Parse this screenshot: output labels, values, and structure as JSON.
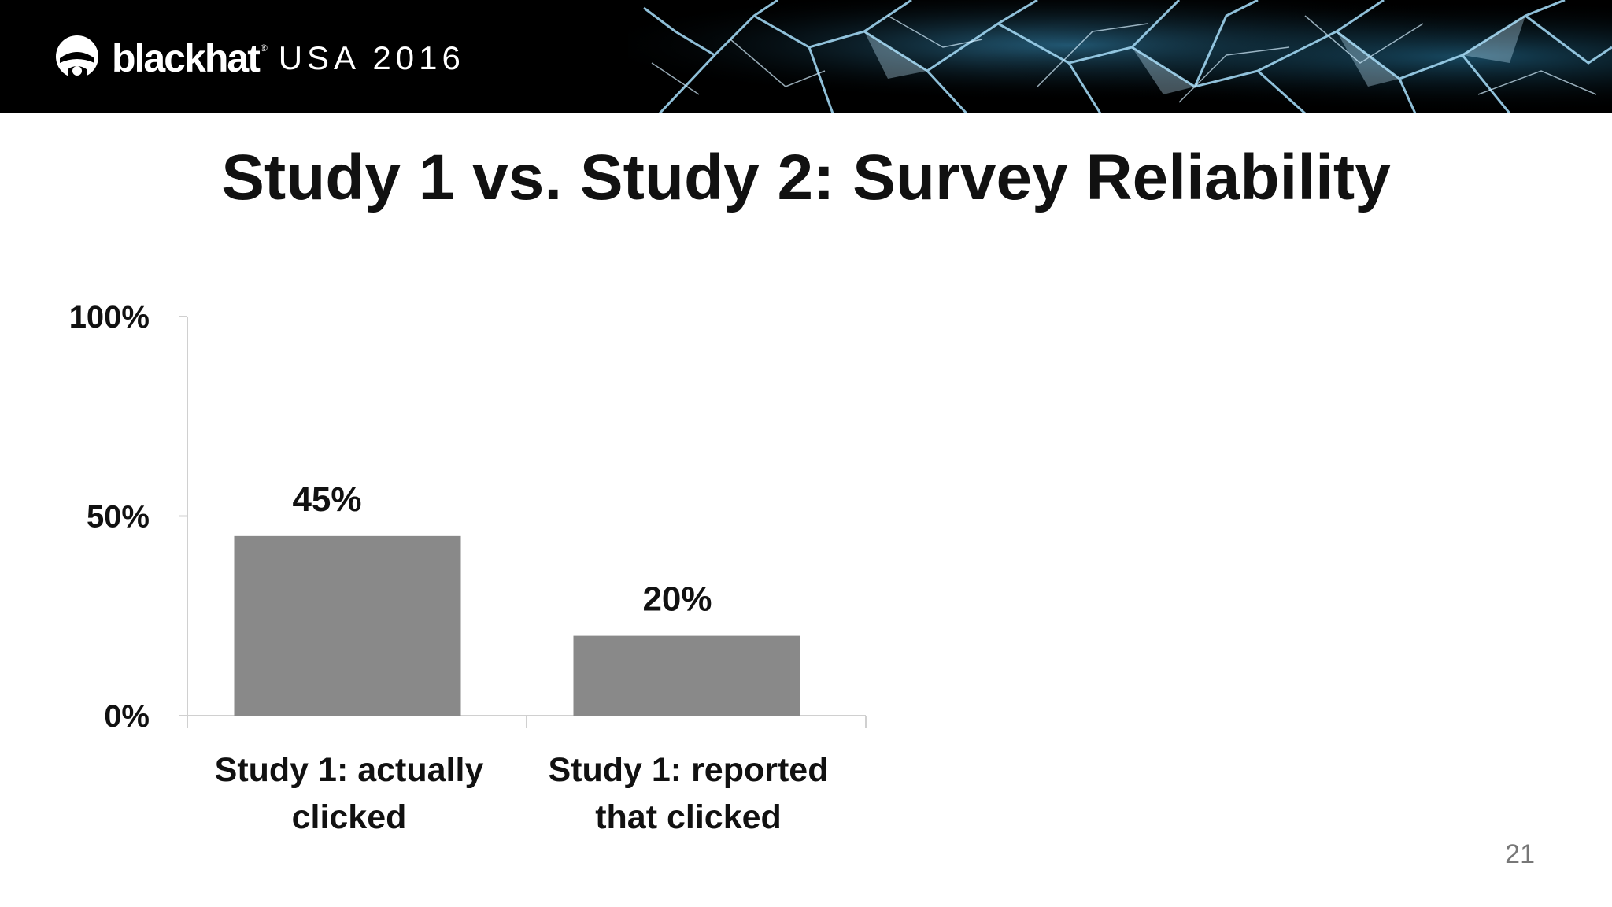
{
  "header": {
    "brand_name": "blackhat",
    "brand_reg": "®",
    "brand_event": "USA 2016",
    "logo_icon": "blackhat-hat-logo-icon",
    "art_icon": "shattered-glass-art"
  },
  "slide": {
    "title": "Study 1 vs. Study 2: Survey Reliability",
    "page_number": "21"
  },
  "colors": {
    "header_bg": "#000000",
    "bar": "#898989",
    "axis": "#d0d0d0",
    "crack": "#9fd4ef"
  },
  "chart_data": {
    "type": "bar",
    "categories": [
      [
        "Study 1: actually",
        "clicked"
      ],
      [
        "Study 1: reported",
        "that clicked"
      ]
    ],
    "values": [
      45,
      20
    ],
    "data_labels": [
      "45%",
      "20%"
    ],
    "yticks": [
      0,
      50,
      100
    ],
    "ytick_labels": [
      "0%",
      "50%",
      "100%"
    ],
    "ylim": [
      0,
      100
    ],
    "title": "",
    "xlabel": "",
    "ylabel": "",
    "grid": false,
    "legend": "none"
  }
}
